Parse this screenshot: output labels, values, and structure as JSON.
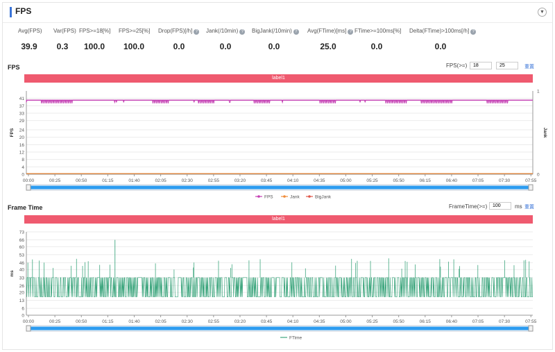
{
  "header": {
    "title": "FPS",
    "collapse_icon": "chevron-down-icon"
  },
  "stats": [
    {
      "label": "Avg(FPS)",
      "value": "39.9",
      "help": false
    },
    {
      "label": "Var(FPS)",
      "value": "0.3",
      "help": false
    },
    {
      "label": "FPS>=18[%]",
      "value": "100.0",
      "help": false
    },
    {
      "label": "FPS>=25[%]",
      "value": "100.0",
      "help": false
    },
    {
      "label": "Drop(FPS)[/h]",
      "value": "0.0",
      "help": true
    },
    {
      "label": "Jank(/10min)",
      "value": "0.0",
      "help": true
    },
    {
      "label": "BigJank(/10min)",
      "value": "0.0",
      "help": true
    },
    {
      "label": "Avg(FTime)[ms]",
      "value": "25.0",
      "help": true
    },
    {
      "label": "FTime>=100ms[%]",
      "value": "0.0",
      "help": false
    },
    {
      "label": "Delta(FTime)>100ms[/h]",
      "value": "0.0",
      "help": true
    }
  ],
  "fps_section": {
    "title": "FPS",
    "filter_label": "FPS(>=)",
    "filter_value_1": "18",
    "filter_value_2": "25",
    "reset_label": "重置",
    "label_bar": "label1"
  },
  "ftime_section": {
    "title": "Frame Time",
    "filter_label": "FrameTime(>=)",
    "filter_value": "100",
    "unit_label": "ms",
    "reset_label": "重置",
    "label_bar": "label1"
  },
  "chart_data": [
    {
      "type": "line",
      "title": "FPS",
      "ylabel": "FPS",
      "y2label": "Jank",
      "yticks": [
        0,
        4,
        8,
        12,
        16,
        20,
        24,
        29,
        33,
        37,
        41
      ],
      "ylim": [
        0,
        45
      ],
      "y2ticks": [
        0,
        1
      ],
      "y2lim": [
        0,
        1
      ],
      "xticks": [
        "00:00",
        "00:25",
        "00:50",
        "01:15",
        "01:40",
        "02:05",
        "02:30",
        "02:55",
        "03:20",
        "03:45",
        "04:10",
        "04:35",
        "05:00",
        "05:25",
        "05:50",
        "06:15",
        "06:40",
        "07:05",
        "07:30",
        "07:55"
      ],
      "grid": true,
      "legend_position": "bottom",
      "series": [
        {
          "name": "FPS",
          "color": "#c43fb3",
          "baseline": 40,
          "dips": [
            [
              0.03,
              0.09
            ],
            [
              0.25,
              0.28
            ],
            [
              0.34,
              0.37
            ],
            [
              0.45,
              0.48
            ],
            [
              0.58,
              0.61
            ],
            [
              0.71,
              0.75
            ],
            [
              0.78,
              0.84
            ],
            [
              0.91,
              0.95
            ]
          ]
        },
        {
          "name": "Jank",
          "color": "#f08c3a",
          "value": 0
        },
        {
          "name": "BigJank",
          "color": "#e0574a",
          "value": 0
        }
      ]
    },
    {
      "type": "line",
      "title": "Frame Time",
      "ylabel": "ms",
      "yticks": [
        0,
        6,
        13,
        20,
        26,
        33,
        40,
        46,
        53,
        60,
        66,
        73
      ],
      "ylim": [
        0,
        73
      ],
      "xticks": [
        "00:00",
        "00:25",
        "00:50",
        "01:15",
        "01:40",
        "02:05",
        "02:30",
        "02:55",
        "03:20",
        "03:45",
        "04:10",
        "04:35",
        "05:00",
        "05:25",
        "05:50",
        "06:15",
        "06:40",
        "07:05",
        "07:30",
        "07:55"
      ],
      "grid": true,
      "legend_position": "bottom",
      "series": [
        {
          "name": "FTime",
          "color": "#3fa77f",
          "band": [
            16,
            33
          ],
          "peak": 66,
          "spikes": 45
        }
      ]
    }
  ]
}
